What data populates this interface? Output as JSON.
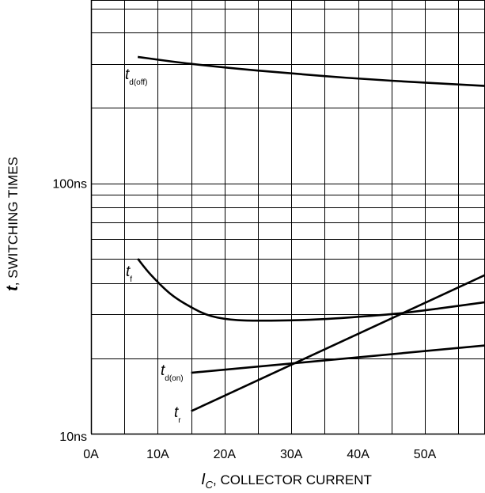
{
  "chart_data": {
    "type": "line",
    "title": "",
    "x_axis": {
      "label_var": "I",
      "label_sub": "C",
      "label_rest": ", COLLECTOR CURRENT",
      "range": [
        0,
        59
      ],
      "ticks": [
        {
          "value": 0,
          "label": "0A"
        },
        {
          "value": 10,
          "label": "10A"
        },
        {
          "value": 20,
          "label": "20A"
        },
        {
          "value": 30,
          "label": "30A"
        },
        {
          "value": 40,
          "label": "40A"
        },
        {
          "value": 50,
          "label": "50A"
        }
      ]
    },
    "y_axis": {
      "label_var": "t",
      "label_rest": ", SWITCHING TIMES",
      "scale": "log",
      "range": [
        10,
        540
      ],
      "ticks": [
        {
          "value": 10,
          "label": "10ns"
        },
        {
          "value": 100,
          "label": "100ns"
        }
      ]
    },
    "grid": true,
    "series": [
      {
        "name": "t_d(off)",
        "label_main": "t",
        "label_sub": "d(off)",
        "x": [
          7,
          15,
          25,
          35,
          45,
          59
        ],
        "y": [
          320,
          300,
          282,
          268,
          257,
          245
        ]
      },
      {
        "name": "t_f",
        "label_main": "t",
        "label_sub": "f",
        "x": [
          7,
          9,
          12,
          15,
          18,
          22,
          28,
          34,
          40,
          46,
          52,
          59
        ],
        "y": [
          50,
          43,
          36,
          32,
          29.5,
          28.4,
          28.3,
          28.6,
          29.3,
          30.2,
          31.6,
          33.5
        ]
      },
      {
        "name": "t_d(on)",
        "label_main": "t",
        "label_sub": "d(on)",
        "x": [
          15,
          59
        ],
        "y": [
          17.5,
          22.5
        ]
      },
      {
        "name": "t_r",
        "label_main": "t",
        "label_sub": "r",
        "x": [
          15,
          59
        ],
        "y": [
          12.3,
          43
        ]
      }
    ]
  }
}
